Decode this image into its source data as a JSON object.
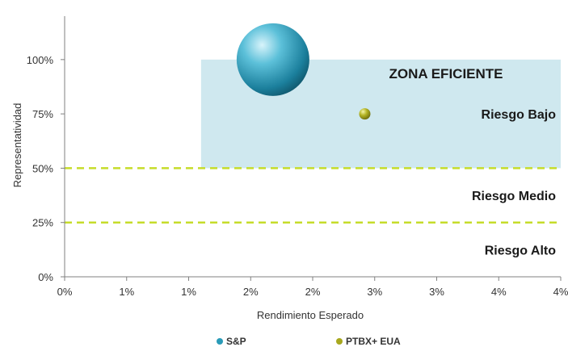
{
  "chart_data": {
    "type": "scatter",
    "title": "",
    "xlabel": "Rendimiento  Esperado",
    "ylabel": "Representatividad",
    "x_ticks": [
      "0%",
      "1%",
      "1%",
      "2%",
      "2%",
      "3%",
      "3%",
      "4%",
      "4%"
    ],
    "xlim": [
      0,
      4
    ],
    "x_tick_step": 0.5,
    "y_ticks": [
      "0%",
      "25%",
      "50%",
      "75%",
      "100%"
    ],
    "ylim": [
      0,
      120
    ],
    "y_tick_values": [
      0,
      25,
      50,
      75,
      100
    ],
    "grid": false,
    "legend_position": "bottom",
    "series": [
      {
        "name": "S&P",
        "x": 1.68,
        "y": 100,
        "size": "large",
        "color": "#2a9bb8"
      },
      {
        "name": "PTBX+ EUA",
        "x": 2.42,
        "y": 75,
        "size": "small",
        "color": "#a8a81e"
      }
    ],
    "efficient_zone": {
      "label": "ZONA EFICIENTE",
      "x_range": [
        1.1,
        4
      ],
      "y_range": [
        50,
        100
      ],
      "color": "#cfe8ef"
    },
    "reference_lines": [
      {
        "y": 50,
        "color": "#c6dc2a",
        "style": "dashed"
      },
      {
        "y": 25,
        "color": "#c6dc2a",
        "style": "dashed"
      }
    ],
    "risk_labels": [
      {
        "text": "Riesgo Bajo",
        "y": 75
      },
      {
        "text": "Riesgo Medio",
        "y": 37.5
      },
      {
        "text": "Riesgo Alto",
        "y": 12.5
      }
    ]
  }
}
